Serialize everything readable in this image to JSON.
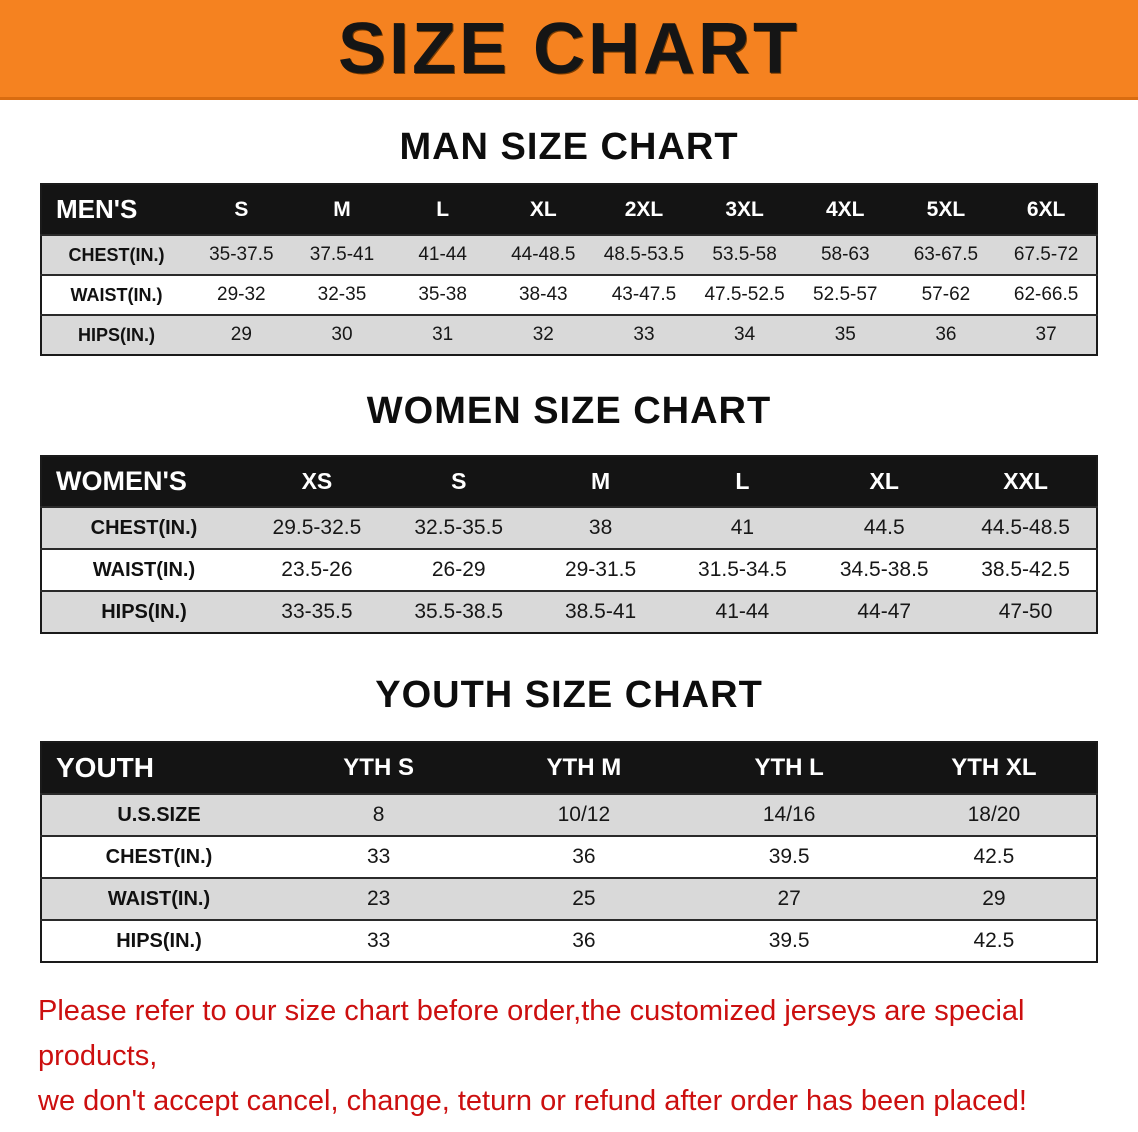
{
  "banner": {
    "title": "SIZE CHART"
  },
  "sections": {
    "men": {
      "heading": "MAN SIZE CHART",
      "table": {
        "header": [
          "MEN'S",
          "S",
          "M",
          "L",
          "XL",
          "2XL",
          "3XL",
          "4XL",
          "5XL",
          "6XL"
        ],
        "rows": [
          [
            "CHEST(IN.)",
            "35-37.5",
            "37.5-41",
            "41-44",
            "44-48.5",
            "48.5-53.5",
            "53.5-58",
            "58-63",
            "63-67.5",
            "67.5-72"
          ],
          [
            "WAIST(IN.)",
            "29-32",
            "32-35",
            "35-38",
            "38-43",
            "43-47.5",
            "47.5-52.5",
            "52.5-57",
            "57-62",
            "62-66.5"
          ],
          [
            "HIPS(IN.)",
            "29",
            "30",
            "31",
            "32",
            "33",
            "34",
            "35",
            "36",
            "37"
          ]
        ]
      }
    },
    "women": {
      "heading": "WOMEN SIZE CHART",
      "table": {
        "header": [
          "WOMEN'S",
          "XS",
          "S",
          "M",
          "L",
          "XL",
          "XXL"
        ],
        "rows": [
          [
            "CHEST(IN.)",
            "29.5-32.5",
            "32.5-35.5",
            "38",
            "41",
            "44.5",
            "44.5-48.5"
          ],
          [
            "WAIST(IN.)",
            "23.5-26",
            "26-29",
            "29-31.5",
            "31.5-34.5",
            "34.5-38.5",
            "38.5-42.5"
          ],
          [
            "HIPS(IN.)",
            "33-35.5",
            "35.5-38.5",
            "38.5-41",
            "41-44",
            "44-47",
            "47-50"
          ]
        ]
      }
    },
    "youth": {
      "heading": "YOUTH SIZE CHART",
      "table": {
        "header": [
          "YOUTH",
          "YTH S",
          "YTH M",
          "YTH L",
          "YTH XL"
        ],
        "rows": [
          [
            "U.S.SIZE",
            "8",
            "10/12",
            "14/16",
            "18/20"
          ],
          [
            "CHEST(IN.)",
            "33",
            "36",
            "39.5",
            "42.5"
          ],
          [
            "WAIST(IN.)",
            "23",
            "25",
            "27",
            "29"
          ],
          [
            "HIPS(IN.)",
            "33",
            "36",
            "39.5",
            "42.5"
          ]
        ]
      }
    }
  },
  "disclaimer": {
    "line1": "Please refer to our size chart before order,the customized jerseys are special products,",
    "line2": "we don't accept cancel, change, teturn or refund after order has been placed!"
  },
  "colors": {
    "banner_orange": "#f58220",
    "header_black": "#141414",
    "row_gray": "#d9d9d9",
    "disclaimer_red": "#cc0f0f"
  }
}
